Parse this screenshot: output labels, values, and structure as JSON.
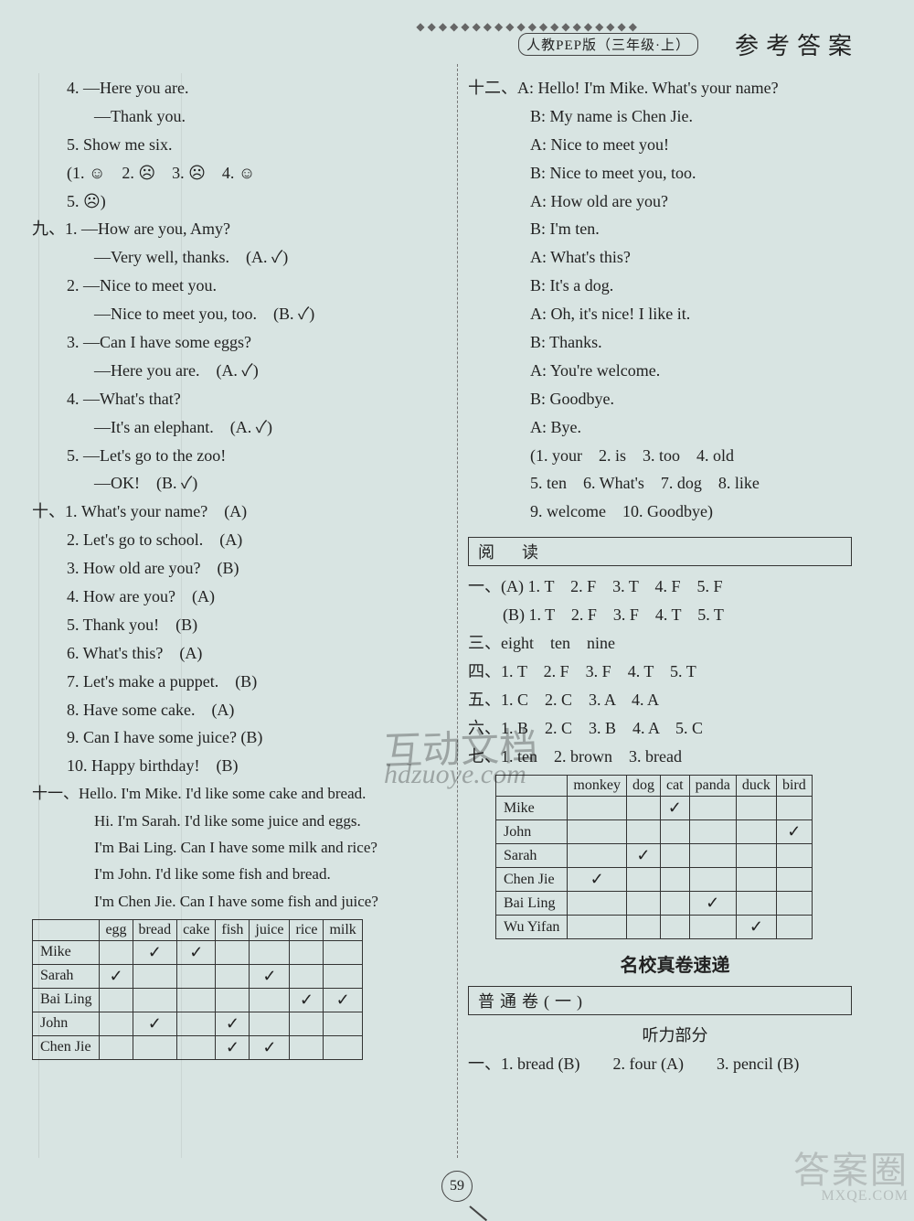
{
  "header": {
    "dots": "◆◆◆◆◆◆◆◆◆◆◆◆◆◆◆◆◆◆◆◆",
    "badge": "人教PEP版（三年级·上）",
    "title": "参考答案"
  },
  "left": {
    "q8": {
      "i4a": "4. —Here you are.",
      "i4b": "—Thank you.",
      "i5": "5. Show me six.",
      "ans": "(1. ☺　2. ☹　3. ☹　4. ☺",
      "ans2": "5. ☹)"
    },
    "q9": {
      "label": "九、",
      "i1a": "1. —How are you,  Amy?",
      "i1b": "—Very well,  thanks.　(A. ✓)",
      "i2a": "2. —Nice to meet you.",
      "i2b": "—Nice to meet you,  too.　(B. ✓)",
      "i3a": "3. —Can I have some eggs?",
      "i3b": "—Here you are.　(A. ✓)",
      "i4a": "4. —What's that?",
      "i4b": "—It's an elephant.　(A. ✓)",
      "i5a": "5. —Let's go to the zoo!",
      "i5b": "—OK!　(B. ✓)"
    },
    "q10": {
      "label": "十、",
      "i1": "1. What's your name?　(A)",
      "i2": "2. Let's go to school.　(A)",
      "i3": "3. How old are you?　(B)",
      "i4": "4. How are you?　(A)",
      "i5": "5. Thank you!　(B)",
      "i6": "6. What's this?　(A)",
      "i7": "7. Let's make a puppet.　(B)",
      "i8": "8. Have some cake.　(A)",
      "i9": "9. Can I have some juice?  (B)",
      "i10": "10. Happy birthday!　(B)"
    },
    "q11": {
      "label": "十一、",
      "l1": "Hello.  I'm Mike.  I'd like some cake and bread.",
      "l2": "Hi.  I'm Sarah.  I'd like some juice and eggs.",
      "l3": "I'm Bai Ling.  Can I have some milk and rice?",
      "l4": "I'm John.  I'd like some fish and bread.",
      "l5": "I'm Chen Jie.  Can I have some fish and juice?"
    },
    "table11": {
      "cols": [
        "",
        "egg",
        "bread",
        "cake",
        "fish",
        "juice",
        "rice",
        "milk"
      ],
      "rows": [
        {
          "name": "Mike",
          "cells": [
            "",
            "✓",
            "✓",
            "",
            "",
            "",
            ""
          ]
        },
        {
          "name": "Sarah",
          "cells": [
            "✓",
            "",
            "",
            "",
            "✓",
            "",
            ""
          ]
        },
        {
          "name": "Bai Ling",
          "cells": [
            "",
            "",
            "",
            "",
            "",
            "✓",
            "✓"
          ]
        },
        {
          "name": "John",
          "cells": [
            "",
            "✓",
            "",
            "✓",
            "",
            "",
            ""
          ]
        },
        {
          "name": "Chen Jie",
          "cells": [
            "",
            "",
            "",
            "✓",
            "✓",
            "",
            ""
          ]
        }
      ]
    }
  },
  "right": {
    "q12": {
      "label": "十二、",
      "d": [
        "A: Hello! I'm Mike.  What's your name?",
        "B: My name is Chen Jie.",
        "A: Nice to meet you!",
        "B: Nice to meet you,  too.",
        "A: How old are you?",
        "B: I'm ten.",
        "A: What's this?",
        "B: It's a dog.",
        "A: Oh,  it's nice! I like it.",
        "B: Thanks.",
        "A: You're welcome.",
        "B: Goodbye.",
        "A: Bye."
      ],
      "ans1": "(1. your　2. is　3. too　4. old",
      "ans2": "5. ten　6. What's　7. dog　8. like",
      "ans3": "9. welcome　10. Goodbye)"
    },
    "reading": {
      "box": "阅　读",
      "i1a": "一、(A) 1. T　2. F　3. T　4. F　5. F",
      "i1b": "(B) 1. T　2. F　3. F　4. T　5. T",
      "i3": "三、eight　ten　nine",
      "i4": "四、1. T　2. F　3. F　4. T　5. T",
      "i5": "五、1. C　2. C　3. A　4. A",
      "i6": "六、1. B　2. C　3. B　4. A　5. C",
      "i7": "七、1. ten　2. brown　3. bread"
    },
    "table8": {
      "cols": [
        "",
        "monkey",
        "dog",
        "cat",
        "panda",
        "duck",
        "bird"
      ],
      "rows": [
        {
          "name": "Mike",
          "cells": [
            "",
            "",
            "✓",
            "",
            "",
            ""
          ]
        },
        {
          "name": "John",
          "cells": [
            "",
            "",
            "",
            "",
            "",
            "✓"
          ]
        },
        {
          "name": "Sarah",
          "cells": [
            "",
            "✓",
            "",
            "",
            "",
            ""
          ]
        },
        {
          "name": "Chen Jie",
          "cells": [
            "✓",
            "",
            "",
            "",
            "",
            ""
          ]
        },
        {
          "name": "Bai Ling",
          "cells": [
            "",
            "",
            "",
            "✓",
            "",
            ""
          ]
        },
        {
          "name": "Wu Yifan",
          "cells": [
            "",
            "",
            "",
            "",
            "✓",
            ""
          ]
        }
      ]
    },
    "bottom": {
      "hdr": "名校真卷速递",
      "box": "普通卷(一)",
      "sub": "听力部分",
      "ln": "一、1. bread (B)　　2. four (A)　　3. pencil (B)"
    }
  },
  "pageNum": "59",
  "watermark1": "互动文档",
  "watermark2": "hdzuoye.com",
  "corner": "答案圈",
  "cornerSub": "MXQE.COM"
}
